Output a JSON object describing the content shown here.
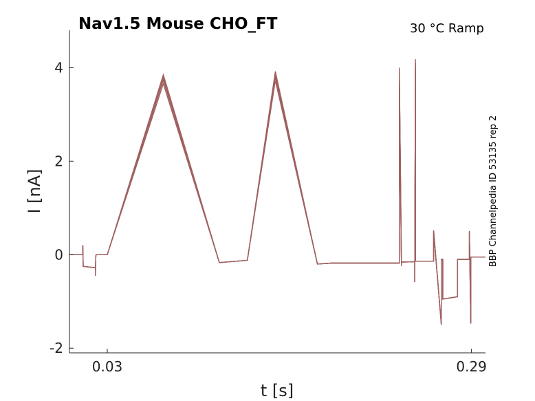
{
  "chart_data": {
    "type": "line",
    "title": "Nav1.5  Mouse  CHO_FT",
    "subtitle": "30 °C  Ramp",
    "side_label": "BBP Channelpedia ID 53135 rep 2",
    "xlabel": "t [s]",
    "ylabel": "I [nA]",
    "xlim": [
      0.003,
      0.3
    ],
    "ylim": [
      -2.1,
      4.8
    ],
    "x_ticks": [
      {
        "v": 0.03,
        "label": "0.03"
      },
      {
        "v": 0.29,
        "label": "0.29"
      }
    ],
    "y_ticks": [
      {
        "v": -2,
        "label": "-2"
      },
      {
        "v": 0,
        "label": "0"
      },
      {
        "v": 2,
        "label": "2"
      },
      {
        "v": 4,
        "label": "4"
      }
    ],
    "color": "#a06060",
    "series": [
      {
        "scale": 1.0,
        "x": [
          0.003,
          0.0125,
          0.0125,
          0.0128,
          0.013,
          0.0215,
          0.0215,
          0.0218,
          0.022,
          0.03,
          0.07,
          0.11,
          0.13,
          0.15,
          0.18,
          0.19,
          0.21,
          0.2385,
          0.2385,
          0.24,
          0.24,
          0.2495,
          0.2495,
          0.25,
          0.25,
          0.263,
          0.263,
          0.2685,
          0.2685,
          0.2695,
          0.2695,
          0.28,
          0.28,
          0.2885,
          0.2885,
          0.2895,
          0.2895,
          0.3
        ],
        "y": [
          0,
          0,
          0.2,
          -0.25,
          -0.25,
          -0.28,
          -0.45,
          -0.05,
          0,
          0,
          3.85,
          -0.17,
          -0.12,
          3.92,
          -0.2,
          -0.18,
          -0.18,
          -0.18,
          4.0,
          -0.24,
          -0.16,
          -0.15,
          -0.58,
          4.18,
          -0.14,
          -0.14,
          0.52,
          -1.5,
          -0.1,
          -0.1,
          -0.95,
          -0.9,
          -0.1,
          -0.1,
          0.5,
          -1.47,
          -0.05,
          -0.05
        ]
      },
      {
        "scale": 0.985,
        "x": [
          0.003,
          0.0125,
          0.0125,
          0.0128,
          0.013,
          0.0215,
          0.0215,
          0.0218,
          0.022,
          0.03,
          0.07,
          0.11,
          0.13,
          0.15,
          0.18,
          0.19,
          0.21,
          0.2385,
          0.2385,
          0.24,
          0.24,
          0.2495,
          0.2495,
          0.25,
          0.25,
          0.263,
          0.263,
          0.2685,
          0.2685,
          0.2695,
          0.2695,
          0.28,
          0.28,
          0.2885,
          0.2885,
          0.2895,
          0.2895,
          0.3
        ],
        "y": [
          0,
          0,
          0.2,
          -0.25,
          -0.25,
          -0.28,
          -0.45,
          -0.05,
          0,
          0,
          3.85,
          -0.17,
          -0.12,
          3.92,
          -0.2,
          -0.18,
          -0.18,
          -0.18,
          4.0,
          -0.24,
          -0.16,
          -0.15,
          -0.58,
          4.18,
          -0.14,
          -0.14,
          0.52,
          -1.5,
          -0.1,
          -0.1,
          -0.95,
          -0.9,
          -0.1,
          -0.1,
          0.5,
          -1.47,
          -0.05,
          -0.05
        ]
      },
      {
        "scale": 0.97,
        "x": [
          0.003,
          0.0125,
          0.0125,
          0.0128,
          0.013,
          0.0215,
          0.0215,
          0.0218,
          0.022,
          0.03,
          0.07,
          0.11,
          0.13,
          0.15,
          0.18,
          0.19,
          0.21,
          0.2385,
          0.2385,
          0.24,
          0.24,
          0.2495,
          0.2495,
          0.25,
          0.25,
          0.263,
          0.263,
          0.2685,
          0.2685,
          0.2695,
          0.2695,
          0.28,
          0.28,
          0.2885,
          0.2885,
          0.2895,
          0.2895,
          0.3
        ],
        "y": [
          0,
          0,
          0.2,
          -0.25,
          -0.25,
          -0.28,
          -0.45,
          -0.05,
          0,
          0,
          3.85,
          -0.17,
          -0.12,
          3.92,
          -0.2,
          -0.18,
          -0.18,
          -0.18,
          4.0,
          -0.24,
          -0.16,
          -0.15,
          -0.58,
          4.18,
          -0.14,
          -0.14,
          0.52,
          -1.5,
          -0.1,
          -0.1,
          -0.95,
          -0.9,
          -0.1,
          -0.1,
          0.5,
          -1.47,
          -0.05,
          -0.05
        ]
      },
      {
        "scale": 0.95,
        "x": [
          0.003,
          0.0125,
          0.0125,
          0.0128,
          0.013,
          0.0215,
          0.0215,
          0.0218,
          0.022,
          0.03,
          0.07,
          0.11,
          0.13,
          0.15,
          0.18,
          0.19,
          0.21,
          0.2385,
          0.2385,
          0.24,
          0.24,
          0.2495,
          0.2495,
          0.25,
          0.25,
          0.263,
          0.263,
          0.2685,
          0.2685,
          0.2695,
          0.2695,
          0.28,
          0.28,
          0.2885,
          0.2885,
          0.2895,
          0.2895,
          0.3
        ],
        "y": [
          0,
          0,
          0.2,
          -0.25,
          -0.25,
          -0.28,
          -0.45,
          -0.05,
          0,
          0,
          3.85,
          -0.17,
          -0.12,
          3.92,
          -0.2,
          -0.18,
          -0.18,
          -0.18,
          4.0,
          -0.24,
          -0.16,
          -0.15,
          -0.58,
          4.18,
          -0.14,
          -0.14,
          0.52,
          -1.5,
          -0.1,
          -0.1,
          -0.95,
          -0.9,
          -0.1,
          -0.1,
          0.5,
          -1.47,
          -0.05,
          -0.05
        ]
      }
    ]
  }
}
